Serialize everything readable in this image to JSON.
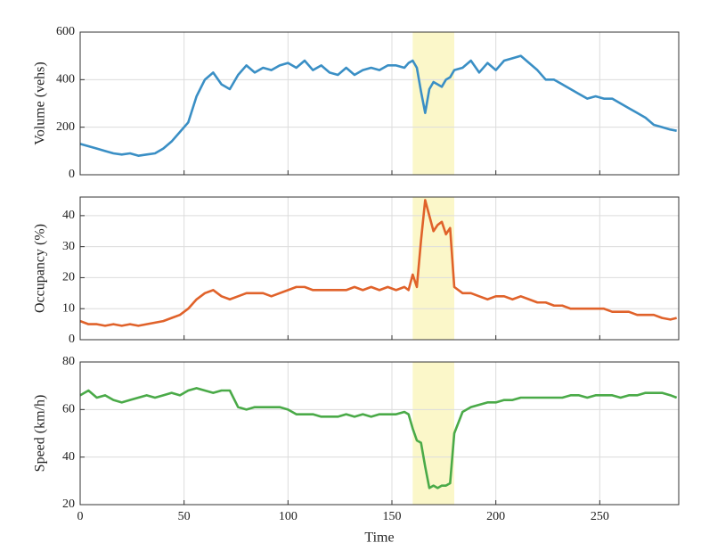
{
  "chart_data": [
    {
      "type": "line",
      "ylabel": "Volume (vehs)",
      "color": "#3a8fc5",
      "x": [
        0,
        4,
        8,
        12,
        16,
        20,
        24,
        28,
        32,
        36,
        40,
        44,
        48,
        52,
        56,
        60,
        64,
        68,
        72,
        76,
        80,
        84,
        88,
        92,
        96,
        100,
        104,
        108,
        112,
        116,
        120,
        124,
        128,
        132,
        136,
        140,
        144,
        148,
        152,
        156,
        158,
        160,
        162,
        164,
        166,
        168,
        170,
        172,
        174,
        176,
        178,
        180,
        184,
        188,
        192,
        196,
        200,
        204,
        208,
        212,
        216,
        220,
        224,
        228,
        232,
        236,
        240,
        244,
        248,
        252,
        256,
        260,
        264,
        268,
        272,
        276,
        280,
        284,
        287
      ],
      "values": [
        130,
        120,
        110,
        100,
        90,
        85,
        90,
        80,
        85,
        90,
        110,
        140,
        180,
        220,
        330,
        400,
        430,
        380,
        360,
        420,
        460,
        430,
        450,
        440,
        460,
        470,
        450,
        480,
        440,
        460,
        430,
        420,
        450,
        420,
        440,
        450,
        440,
        460,
        460,
        450,
        470,
        480,
        450,
        350,
        260,
        360,
        390,
        380,
        370,
        400,
        410,
        440,
        450,
        480,
        430,
        470,
        440,
        480,
        490,
        500,
        470,
        440,
        400,
        400,
        380,
        360,
        340,
        320,
        330,
        320,
        320,
        300,
        280,
        260,
        240,
        210,
        200,
        190,
        185
      ],
      "xlim": [
        0,
        288
      ],
      "xticks": [
        0,
        50,
        100,
        150,
        200,
        250
      ],
      "ylim": [
        0,
        600
      ],
      "yticks": [
        0,
        200,
        400,
        600
      ],
      "grid": true,
      "highlight": {
        "range": [
          160,
          180
        ],
        "color": "#fbf7c9"
      }
    },
    {
      "type": "line",
      "ylabel": "Occupancy (%)",
      "color": "#e0622a",
      "x": [
        0,
        4,
        8,
        12,
        16,
        20,
        24,
        28,
        32,
        36,
        40,
        44,
        48,
        52,
        56,
        60,
        64,
        68,
        72,
        76,
        80,
        84,
        88,
        92,
        96,
        100,
        104,
        108,
        112,
        116,
        120,
        124,
        128,
        132,
        136,
        140,
        144,
        148,
        152,
        156,
        158,
        160,
        162,
        164,
        166,
        168,
        170,
        172,
        174,
        176,
        178,
        180,
        184,
        188,
        192,
        196,
        200,
        204,
        208,
        212,
        216,
        220,
        224,
        228,
        232,
        236,
        240,
        244,
        248,
        252,
        256,
        260,
        264,
        268,
        272,
        276,
        280,
        284,
        287
      ],
      "values": [
        6,
        5,
        5,
        4.5,
        5,
        4.5,
        5,
        4.5,
        5,
        5.5,
        6,
        7,
        8,
        10,
        13,
        15,
        16,
        14,
        13,
        14,
        15,
        15,
        15,
        14,
        15,
        16,
        17,
        17,
        16,
        16,
        16,
        16,
        16,
        17,
        16,
        17,
        16,
        17,
        16,
        17,
        16,
        21,
        17,
        32,
        45,
        40,
        35,
        37,
        38,
        34,
        36,
        17,
        15,
        15,
        14,
        13,
        14,
        14,
        13,
        14,
        13,
        12,
        12,
        11,
        11,
        10,
        10,
        10,
        10,
        10,
        9,
        9,
        9,
        8,
        8,
        8,
        7,
        6.5,
        7
      ],
      "xlim": [
        0,
        288
      ],
      "xticks": [
        0,
        50,
        100,
        150,
        200,
        250
      ],
      "ylim": [
        0,
        46
      ],
      "yticks": [
        0,
        10,
        20,
        30,
        40
      ],
      "grid": true,
      "highlight": {
        "range": [
          160,
          180
        ],
        "color": "#fbf7c9"
      }
    },
    {
      "type": "line",
      "ylabel": "Speed (km/h)",
      "xlabel": "Time",
      "color": "#4aaa48",
      "x": [
        0,
        4,
        8,
        12,
        16,
        20,
        24,
        28,
        32,
        36,
        40,
        44,
        48,
        52,
        56,
        60,
        64,
        68,
        72,
        76,
        80,
        84,
        88,
        92,
        96,
        100,
        104,
        108,
        112,
        116,
        120,
        124,
        128,
        132,
        136,
        140,
        144,
        148,
        152,
        156,
        158,
        160,
        162,
        164,
        166,
        168,
        170,
        172,
        174,
        176,
        178,
        180,
        184,
        188,
        192,
        196,
        200,
        204,
        208,
        212,
        216,
        220,
        224,
        228,
        232,
        236,
        240,
        244,
        248,
        252,
        256,
        260,
        264,
        268,
        272,
        276,
        280,
        284,
        287
      ],
      "values": [
        66,
        68,
        65,
        66,
        64,
        63,
        64,
        65,
        66,
        65,
        66,
        67,
        66,
        68,
        69,
        68,
        67,
        68,
        68,
        61,
        60,
        61,
        61,
        61,
        61,
        60,
        58,
        58,
        58,
        57,
        57,
        57,
        58,
        57,
        58,
        57,
        58,
        58,
        58,
        59,
        58,
        52,
        47,
        46,
        36,
        27,
        28,
        27,
        28,
        28,
        29,
        50,
        59,
        61,
        62,
        63,
        63,
        64,
        64,
        65,
        65,
        65,
        65,
        65,
        65,
        66,
        66,
        65,
        66,
        66,
        66,
        65,
        66,
        66,
        67,
        67,
        67,
        66,
        65
      ],
      "xlim": [
        0,
        288
      ],
      "xticks": [
        0,
        50,
        100,
        150,
        200,
        250
      ],
      "ylim": [
        20,
        80
      ],
      "yticks": [
        20,
        40,
        60,
        80
      ],
      "grid": true,
      "highlight": {
        "range": [
          160,
          180
        ],
        "color": "#fbf7c9"
      }
    }
  ]
}
